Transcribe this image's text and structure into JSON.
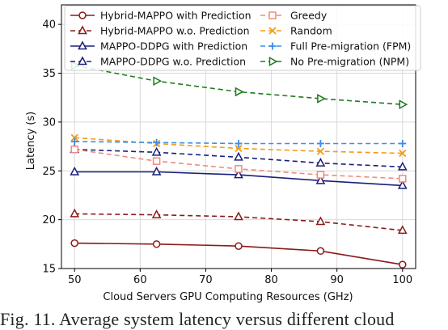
{
  "chart_data": {
    "type": "line",
    "xlabel": "Cloud Servers GPU Computing Resources (GHz)",
    "ylabel": "Latency (s)",
    "x": [
      50,
      62.5,
      75,
      87.5,
      100
    ],
    "xlim": [
      48,
      102
    ],
    "ylim": [
      15,
      42
    ],
    "xticks": [
      50,
      60,
      70,
      80,
      90,
      100
    ],
    "yticks": [
      15,
      20,
      25,
      30,
      35,
      40
    ],
    "grid": true,
    "legend_position": "top, two columns",
    "series": [
      {
        "name": "Hybrid-MAPPO with Prediction",
        "values": [
          17.6,
          17.5,
          17.3,
          16.8,
          15.4
        ],
        "color": "#8b1a1a",
        "dash": "solid",
        "marker": "circle",
        "label_color": "#111111"
      },
      {
        "name": "Hybrid-MAPPO w.o. Prediction",
        "values": [
          20.6,
          20.5,
          20.3,
          19.8,
          18.9
        ],
        "color": "#8b1a1a",
        "dash": "dashed",
        "marker": "triangle-up",
        "label_color": "#111111"
      },
      {
        "name": "MAPPO-DDPG with Prediction",
        "values": [
          24.9,
          24.9,
          24.6,
          24.0,
          23.5
        ],
        "color": "#1a1f7a",
        "dash": "solid",
        "marker": "triangle-up",
        "label_color": "#111111"
      },
      {
        "name": "MAPPO-DDPG w.o. Prediction",
        "values": [
          27.2,
          26.9,
          26.4,
          25.8,
          25.4
        ],
        "color": "#1a1f7a",
        "dash": "dashed",
        "marker": "triangle-up",
        "label_color": "#111111"
      },
      {
        "name": "Greedy",
        "values": [
          27.2,
          26.0,
          25.2,
          24.6,
          24.2
        ],
        "color": "#f08a7e",
        "dash": "dashed",
        "marker": "square",
        "label_color": "#111111"
      },
      {
        "name": "Random",
        "values": [
          28.4,
          27.8,
          27.3,
          27.0,
          26.8
        ],
        "color": "#f39c12",
        "dash": "dashed",
        "marker": "x",
        "label_color": "#111111"
      },
      {
        "name": "Full Pre-migration (FPM)",
        "values": [
          28.0,
          27.9,
          27.8,
          27.8,
          27.8
        ],
        "color": "#3a8ee6",
        "dash": "dashed",
        "marker": "plus",
        "label_color": "#111111"
      },
      {
        "name": "No Pre-migration (NPM)",
        "values": [
          35.8,
          34.2,
          33.1,
          32.4,
          31.8
        ],
        "color": "#1e7a1e",
        "dash": "dashed",
        "marker": "triangle-right",
        "label_color": "#111111"
      }
    ]
  },
  "caption": "Fig. 11.  Average system latency versus different cloud"
}
